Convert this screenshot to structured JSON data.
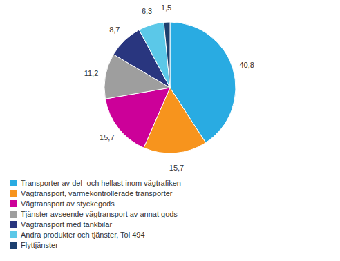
{
  "chart_data": {
    "type": "pie",
    "categories": [
      "Transporter av del- och hellast inom vägtrafiken",
      "Vägtransport, värmekontrollerade transporter",
      "Vägtransport av styckegods",
      "Tjänster avseende vägtransport av annat gods",
      "Vägtransport med tankbilar",
      "Andra produkter och tjänster, Tol 494",
      "Flyttjänster"
    ],
    "values": [
      40.8,
      15.7,
      15.7,
      11.2,
      8.7,
      6.3,
      1.5
    ],
    "value_labels": [
      "40,8",
      "15,7",
      "15,7",
      "11,2",
      "8,7",
      "6,3",
      "1,5"
    ],
    "colors": [
      "#29ABE2",
      "#F7941D",
      "#CC0099",
      "#9E9E9E",
      "#29367F",
      "#5BC8E8",
      "#1C3F6E"
    ],
    "data_labels": true,
    "legend": "bottom"
  }
}
